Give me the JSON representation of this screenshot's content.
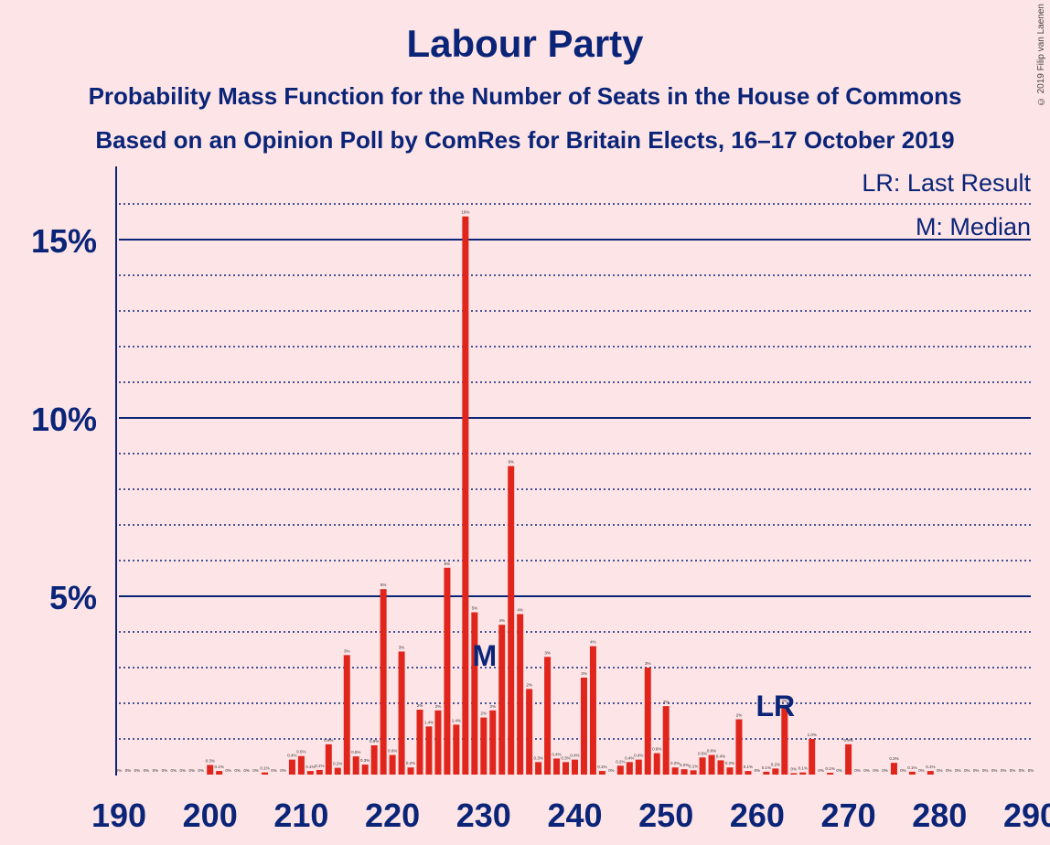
{
  "title": "Labour Party",
  "subtitle1": "Probability Mass Function for the Number of Seats in the House of Commons",
  "subtitle2": "Based on an Opinion Poll by ComRes for Britain Elects, 16–17 October 2019",
  "copyright": "© 2019 Filip van Laenen",
  "legend": {
    "lr": "LR: Last Result",
    "m": "M: Median"
  },
  "markers": {
    "median_label": "M",
    "median_seat": 230,
    "lr_label": "LR",
    "lr_seat": 262
  },
  "colors": {
    "bar": "#e0261c",
    "axis": "#0a2478",
    "background": "#fde4e6"
  },
  "chart_data": {
    "type": "bar",
    "xlim": [
      190,
      290
    ],
    "ylim": [
      0,
      17
    ],
    "x_ticks": [
      190,
      200,
      210,
      220,
      230,
      240,
      250,
      260,
      270,
      280,
      290
    ],
    "y_ticks": [
      {
        "value": 5,
        "label": "5%"
      },
      {
        "value": 10,
        "label": "10%"
      },
      {
        "value": 15,
        "label": "15%"
      }
    ],
    "grid": "solid major every 5%, dotted minor every 1%",
    "seats": [
      190,
      191,
      192,
      193,
      194,
      195,
      196,
      197,
      198,
      199,
      200,
      201,
      202,
      203,
      204,
      205,
      206,
      207,
      208,
      209,
      210,
      211,
      212,
      213,
      214,
      215,
      216,
      217,
      218,
      219,
      220,
      221,
      222,
      223,
      224,
      225,
      226,
      227,
      228,
      229,
      230,
      231,
      232,
      233,
      234,
      235,
      236,
      237,
      238,
      239,
      240,
      241,
      242,
      243,
      244,
      245,
      246,
      247,
      248,
      249,
      250,
      251,
      252,
      253,
      254,
      255,
      256,
      257,
      258,
      259,
      260,
      261,
      262,
      263,
      264,
      265,
      266,
      267,
      268,
      269,
      270,
      271,
      272,
      273,
      274,
      275,
      276,
      277,
      278,
      279,
      280,
      281,
      282,
      283,
      284,
      285,
      286,
      287,
      288,
      289,
      290
    ],
    "values": [
      0,
      0,
      0,
      0,
      0,
      0,
      0,
      0,
      0,
      0,
      0.27,
      0.1,
      0,
      0,
      0,
      0,
      0.06,
      0,
      0,
      0.42,
      0.52,
      0.1,
      0.13,
      0.85,
      0.19,
      3.35,
      0.51,
      0.28,
      0.82,
      5.2,
      0.55,
      3.45,
      0.2,
      1.82,
      1.35,
      1.8,
      5.8,
      1.4,
      15.65,
      4.55,
      1.6,
      1.8,
      4.2,
      8.65,
      4.5,
      2.4,
      0.35,
      3.3,
      0.45,
      0.35,
      0.42,
      2.72,
      3.6,
      0.1,
      0,
      0.25,
      0.35,
      0.42,
      3.0,
      0.6,
      1.92,
      0.2,
      0.15,
      0.12,
      0.48,
      0.55,
      0.4,
      0.2,
      1.55,
      0.1,
      0,
      0.08,
      0.17,
      1.95,
      0.04,
      0.06,
      1.0,
      0,
      0.05,
      0,
      0.85,
      0,
      0,
      0,
      0,
      0.33,
      0,
      0.08,
      0,
      0.1,
      0,
      0,
      0,
      0,
      0,
      0,
      0,
      0,
      0,
      0,
      0
    ],
    "labels": [
      "0%",
      "0%",
      "0%",
      "0%",
      "0%",
      "0%",
      "0%",
      "0%",
      "0%",
      "0%",
      "0.3%",
      "0.1%",
      "0%",
      "0%",
      "0%",
      "0%",
      "0.1%",
      "0%",
      "0%",
      "0.4%",
      "0.5%",
      "0.1%",
      "0.1%",
      "0.9%",
      "0.2%",
      "3%",
      "0.5%",
      "0.3%",
      "0.8%",
      "5%",
      "0.6%",
      "3%",
      "0.2%",
      "2%",
      "1.4%",
      "2%",
      "6%",
      "1.4%",
      "16%",
      "5%",
      "2%",
      "2%",
      "4%",
      "9%",
      "4%",
      "2%",
      "0.3%",
      "3%",
      "0.4%",
      "0.3%",
      "0.4%",
      "3%",
      "4%",
      "0.1%",
      "0%",
      "0.2%",
      "0.4%",
      "0.4%",
      "3%",
      "0.6%",
      "2%",
      "0.2%",
      "0.2%",
      "0.1%",
      "0.5%",
      "0.6%",
      "0.4%",
      "0.2%",
      "2%",
      "0.1%",
      "0%",
      "0.1%",
      "0.2%",
      "2%",
      "0%",
      "0.1%",
      "1.0%",
      "0%",
      "0.1%",
      "0%",
      "0.9%",
      "0%",
      "0%",
      "0%",
      "0%",
      "0.3%",
      "0%",
      "0.1%",
      "0%",
      "0.1%",
      "0%",
      "0%",
      "0%",
      "0%",
      "0%",
      "0%",
      "0%",
      "0%",
      "0%",
      "0%",
      "0%"
    ]
  }
}
